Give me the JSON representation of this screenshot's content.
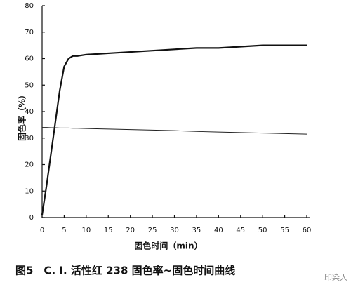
{
  "chart_data": {
    "type": "line",
    "caption": "图5　C. I. 活性红 238 固色率~固色时间曲线",
    "watermark": "印染人",
    "xlabel": "固色时间（min）",
    "ylabel": "固色率（%）",
    "x": [
      0,
      1,
      2,
      3,
      4,
      5,
      6,
      7,
      8,
      10,
      15,
      20,
      25,
      30,
      35,
      40,
      45,
      50,
      55,
      60
    ],
    "series": [
      {
        "color": "#111111",
        "width": 2.2,
        "values": [
          1,
          12,
          24,
          36,
          48,
          57,
          60,
          61,
          61,
          61.5,
          62,
          62.5,
          63,
          63.5,
          64,
          64,
          64.5,
          65,
          65,
          65
        ]
      },
      {
        "color": "#222222",
        "width": 1,
        "values": [
          34,
          34,
          33.9,
          33.9,
          33.8,
          33.8,
          33.8,
          33.7,
          33.7,
          33.6,
          33.4,
          33.2,
          33,
          32.8,
          32.5,
          32.3,
          32.1,
          31.9,
          31.7,
          31.5
        ]
      }
    ],
    "xlim": [
      0,
      60
    ],
    "xticks": [
      0,
      5,
      10,
      15,
      20,
      25,
      30,
      35,
      40,
      45,
      50,
      55,
      60
    ],
    "ylim": [
      0,
      80
    ],
    "yticks": [
      0,
      10,
      20,
      30,
      40,
      50,
      60,
      70,
      80
    ],
    "grid": false
  }
}
